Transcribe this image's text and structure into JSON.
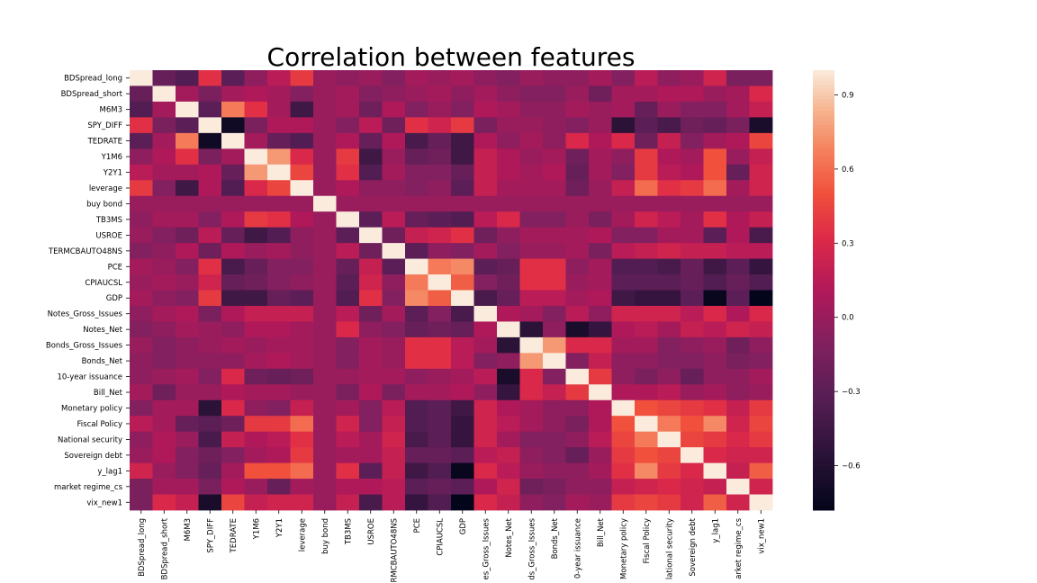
{
  "chart_data": {
    "type": "heatmap",
    "title": "Correlation between features",
    "labels": [
      "BDSpread_long",
      "BDSpread_short",
      "M6M3",
      "SPY_DIFF",
      "TEDRATE",
      "Y1M6",
      "Y2Y1",
      "leverage",
      "buy bond",
      "TB3MS",
      "USROE",
      "TERMCBAUTO48NS",
      "PCE",
      "CPIAUCSL",
      "GDP",
      "Notes_Gross_Issues",
      "Notes_Net",
      "Bonds_Gross_Issues",
      "Bonds_Net",
      "10-year issuance",
      "Bill_Net",
      "Monetary policy",
      "Fiscal Policy",
      "National security",
      "Sovereign debt",
      "y_lag1",
      "market regime_cs",
      "vix_new1"
    ],
    "x_tick_labels": [
      "BDSpread_long",
      "BDSpread_short",
      "M6M3",
      "SPY_DIFF",
      "TEDRATE",
      "Y1M6",
      "Y2Y1",
      "leverage",
      "buy bond",
      "TB3MS",
      "USROE",
      "ERMCBAUTO48NS",
      "PCE",
      "CPIAUCSL",
      "GDP",
      "es_Gross_Issues",
      "Notes_Net",
      "ds_Gross_Issues",
      "Bonds_Net",
      "0-year issuance",
      "Bill_Net",
      "Monetary policy",
      "Fiscal Policy",
      "lational security",
      "Sovereign debt",
      "y_lag1",
      "arket regime_cs",
      "vix_new1"
    ],
    "colorbar": {
      "vmin": -0.78,
      "vmax": 1.0,
      "ticks": [
        0.9,
        0.6,
        0.3,
        0.0,
        -0.3,
        -0.6
      ],
      "tick_labels": [
        "0.9",
        "0.6",
        "0.3",
        "0.0",
        "−0.3",
        "−0.6"
      ]
    },
    "colormap": "rocket",
    "values": [
      [
        1.0,
        -0.25,
        -0.35,
        0.35,
        -0.3,
        -0.05,
        0.15,
        0.4,
        0,
        -0.05,
        0,
        -0.1,
        0.05,
        0,
        0.05,
        -0.05,
        -0.1,
        0,
        -0.05,
        -0.05,
        0.05,
        -0.1,
        0.15,
        -0.05,
        0,
        0.25,
        -0.15,
        -0.15
      ],
      [
        -0.25,
        1.0,
        0.05,
        -0.15,
        0.05,
        0.1,
        0.05,
        -0.1,
        0,
        0.05,
        -0.1,
        -0.05,
        0,
        0.05,
        -0.05,
        0.05,
        -0.05,
        -0.1,
        -0.1,
        0,
        -0.2,
        0.05,
        0.05,
        0.1,
        0.1,
        0,
        0.05,
        0.3
      ],
      [
        -0.35,
        0.05,
        1.0,
        -0.3,
        0.65,
        0.35,
        0.05,
        -0.45,
        0,
        0.05,
        -0.2,
        0.1,
        -0.1,
        0,
        -0.1,
        0.1,
        0.05,
        -0.05,
        -0.05,
        0.05,
        0,
        0.05,
        -0.25,
        0,
        -0.1,
        -0.1,
        0.05,
        0.2
      ],
      [
        0.35,
        -0.15,
        -0.3,
        1.0,
        -0.7,
        -0.15,
        0.1,
        0.1,
        0,
        -0.1,
        0.15,
        -0.2,
        0.35,
        0.25,
        0.4,
        -0.15,
        0,
        0,
        -0.05,
        -0.1,
        0,
        -0.55,
        -0.3,
        -0.4,
        -0.2,
        -0.25,
        -0.15,
        -0.65
      ],
      [
        -0.3,
        0.05,
        0.65,
        -0.7,
        1.0,
        0.05,
        -0.25,
        -0.35,
        0,
        0.1,
        -0.25,
        0.1,
        -0.4,
        -0.25,
        -0.45,
        0.1,
        -0.05,
        0.05,
        -0.05,
        0.3,
        0.1,
        0.3,
        -0.2,
        0.2,
        -0.1,
        0.05,
        0.1,
        0.45
      ],
      [
        -0.05,
        0.1,
        0.35,
        -0.15,
        0.05,
        1.0,
        0.75,
        0.3,
        0,
        0.4,
        -0.45,
        0,
        -0.25,
        -0.2,
        -0.45,
        0.2,
        0.1,
        0,
        0.05,
        -0.2,
        0.05,
        -0.05,
        0.4,
        0.1,
        0.05,
        0.5,
        0,
        0.2
      ],
      [
        0.15,
        0.05,
        0.05,
        0.1,
        -0.25,
        0.75,
        1.0,
        0.45,
        0,
        0.35,
        -0.35,
        0.05,
        -0.1,
        -0.1,
        -0.25,
        0.2,
        0.1,
        0.05,
        0.1,
        -0.25,
        0.05,
        -0.1,
        0.4,
        0.15,
        0.1,
        0.5,
        -0.25,
        0.25
      ],
      [
        0.4,
        -0.1,
        -0.45,
        0.1,
        -0.35,
        0.3,
        0.45,
        1.0,
        0,
        0.1,
        -0.05,
        -0.05,
        -0.1,
        -0.05,
        -0.3,
        0.2,
        0.05,
        0.05,
        0.05,
        -0.2,
        0,
        0.2,
        0.6,
        0.35,
        0.4,
        0.6,
        0.05,
        0.25
      ],
      [
        0,
        0,
        0,
        0,
        0,
        0,
        0,
        0,
        1.0,
        0,
        0,
        0,
        0,
        0,
        0,
        0,
        0,
        0,
        0,
        0,
        0,
        0,
        0,
        0,
        0,
        0,
        0,
        0
      ],
      [
        -0.05,
        0.05,
        0.05,
        -0.1,
        0.1,
        0.4,
        0.35,
        0.1,
        0,
        1.0,
        -0.3,
        0.15,
        -0.25,
        -0.3,
        -0.35,
        0.15,
        0.3,
        -0.1,
        -0.1,
        0,
        -0.15,
        0.05,
        0.25,
        0.15,
        0.05,
        0.35,
        0.1,
        0.2
      ],
      [
        0,
        -0.1,
        -0.2,
        0.15,
        -0.25,
        -0.45,
        -0.35,
        -0.05,
        0,
        -0.3,
        1.0,
        -0.2,
        0.2,
        0.25,
        0.35,
        -0.2,
        -0.05,
        0.05,
        0.05,
        0.05,
        0.1,
        -0.1,
        -0.1,
        0.05,
        0.05,
        -0.3,
        0.1,
        -0.4
      ],
      [
        -0.1,
        -0.05,
        0.1,
        -0.2,
        0.1,
        0,
        0.05,
        -0.05,
        0,
        0.15,
        -0.2,
        1.0,
        -0.3,
        -0.05,
        -0.1,
        0.05,
        -0.1,
        0,
        0,
        0.05,
        -0.15,
        0.15,
        0.2,
        0.25,
        0.2,
        0.2,
        0.15,
        0.15
      ],
      [
        0.05,
        0,
        -0.1,
        0.35,
        -0.4,
        -0.25,
        -0.1,
        -0.1,
        0,
        -0.25,
        0.2,
        -0.3,
        1.0,
        0.65,
        0.7,
        -0.3,
        -0.25,
        0.35,
        0.35,
        -0.05,
        0.05,
        -0.35,
        -0.35,
        -0.4,
        -0.25,
        -0.45,
        -0.3,
        -0.5
      ],
      [
        0,
        0.05,
        0,
        0.25,
        -0.25,
        -0.2,
        -0.1,
        -0.05,
        0,
        -0.3,
        0.25,
        -0.05,
        0.65,
        1.0,
        0.55,
        -0.1,
        -0.2,
        0.35,
        0.35,
        0,
        0.05,
        -0.3,
        -0.3,
        -0.3,
        -0.25,
        -0.35,
        -0.25,
        -0.35
      ],
      [
        0.05,
        -0.05,
        -0.1,
        0.4,
        -0.45,
        -0.45,
        -0.25,
        -0.3,
        0,
        -0.35,
        0.35,
        -0.1,
        0.7,
        0.55,
        1.0,
        -0.4,
        -0.25,
        0.15,
        0.15,
        0.05,
        0.1,
        -0.45,
        -0.5,
        -0.5,
        -0.3,
        -0.75,
        -0.3,
        -0.78
      ],
      [
        -0.05,
        0.05,
        0.1,
        -0.15,
        0.1,
        0.2,
        0.2,
        0.2,
        0,
        0.15,
        -0.2,
        0.05,
        -0.3,
        -0.1,
        -0.4,
        1.0,
        0.1,
        0.05,
        -0.1,
        0.15,
        -0.05,
        0.25,
        0.25,
        0.25,
        0.15,
        0.3,
        0.1,
        0.3
      ],
      [
        -0.1,
        -0.05,
        0.05,
        0,
        -0.05,
        0.1,
        0.1,
        0.05,
        0,
        0.3,
        -0.05,
        -0.1,
        -0.25,
        -0.2,
        -0.25,
        0.1,
        1.0,
        -0.55,
        -0.05,
        -0.65,
        -0.5,
        0.1,
        0.15,
        0.05,
        0.2,
        0.15,
        0.25,
        0.2
      ],
      [
        0,
        -0.1,
        -0.05,
        0,
        0.05,
        0,
        0.05,
        0.05,
        0,
        -0.1,
        0.05,
        0,
        0.35,
        0.35,
        0.15,
        0.05,
        -0.55,
        1.0,
        0.75,
        0.3,
        0.3,
        0.05,
        0.05,
        -0.1,
        -0.05,
        0,
        -0.2,
        -0.05
      ],
      [
        -0.05,
        -0.1,
        -0.05,
        -0.05,
        -0.05,
        0.05,
        0.1,
        0.05,
        0,
        -0.1,
        0.05,
        0,
        0.35,
        0.35,
        0.15,
        -0.1,
        -0.05,
        0.75,
        1.0,
        -0.1,
        0.2,
        -0.05,
        -0.05,
        -0.1,
        -0.1,
        -0.05,
        -0.15,
        -0.1
      ],
      [
        -0.05,
        0,
        0.05,
        -0.1,
        0.3,
        -0.2,
        -0.25,
        -0.2,
        0,
        0,
        0.05,
        0.05,
        -0.05,
        0,
        0.05,
        0.15,
        -0.65,
        0.3,
        -0.1,
        1.0,
        0.4,
        -0.05,
        -0.15,
        -0.05,
        -0.25,
        -0.05,
        -0.05,
        0.05
      ],
      [
        0.05,
        -0.2,
        0,
        0,
        0.1,
        0.05,
        0.05,
        0,
        0,
        -0.15,
        0.1,
        -0.15,
        0.05,
        0.05,
        0.1,
        -0.05,
        -0.5,
        0.3,
        0.2,
        0.4,
        1.0,
        0.1,
        0.1,
        0.15,
        0,
        0.05,
        -0.05,
        0
      ],
      [
        -0.1,
        0.05,
        0.05,
        -0.55,
        0.3,
        -0.05,
        -0.1,
        0.2,
        0,
        0.05,
        -0.1,
        0.15,
        -0.35,
        -0.3,
        -0.45,
        0.25,
        0.1,
        0.05,
        -0.05,
        -0.05,
        0.1,
        1.0,
        0.5,
        0.45,
        0.4,
        0.35,
        0.2,
        0.4
      ],
      [
        0.15,
        0.05,
        -0.25,
        -0.3,
        -0.2,
        0.4,
        0.4,
        0.6,
        0,
        0.25,
        -0.1,
        0.2,
        -0.35,
        -0.3,
        -0.5,
        0.25,
        0.15,
        0.05,
        -0.05,
        -0.15,
        0.1,
        0.5,
        1.0,
        0.65,
        0.5,
        0.7,
        0.25,
        0.45
      ],
      [
        -0.05,
        0.1,
        0,
        -0.4,
        0.2,
        0.1,
        0.15,
        0.35,
        0,
        0.15,
        0.05,
        0.25,
        -0.4,
        -0.3,
        -0.5,
        0.25,
        0.05,
        -0.1,
        -0.1,
        -0.05,
        0.15,
        0.45,
        0.65,
        1.0,
        0.45,
        0.4,
        0.3,
        0.4
      ],
      [
        0,
        0.1,
        -0.1,
        -0.2,
        -0.1,
        0.05,
        0.1,
        0.4,
        0,
        0.05,
        0.05,
        0.2,
        -0.25,
        -0.25,
        -0.3,
        0.15,
        0.2,
        -0.05,
        -0.1,
        -0.25,
        0,
        0.4,
        0.5,
        0.45,
        1.0,
        0.3,
        0.25,
        0.25
      ],
      [
        0.25,
        0,
        -0.1,
        -0.25,
        0.05,
        0.5,
        0.5,
        0.6,
        0,
        0.35,
        -0.3,
        0.2,
        -0.45,
        -0.35,
        -0.75,
        0.3,
        0.15,
        0,
        -0.05,
        -0.05,
        0.05,
        0.35,
        0.7,
        0.4,
        0.3,
        1.0,
        0.2,
        0.55
      ],
      [
        -0.15,
        0.05,
        0.05,
        -0.15,
        0.1,
        0,
        -0.25,
        0.05,
        0,
        0.1,
        0.1,
        0.15,
        -0.3,
        -0.25,
        -0.3,
        0.1,
        0.25,
        -0.2,
        -0.15,
        -0.05,
        -0.05,
        0.2,
        0.25,
        0.3,
        0.25,
        0.2,
        1.0,
        0.25
      ],
      [
        -0.15,
        0.3,
        0.2,
        -0.65,
        0.45,
        0.2,
        0.25,
        0.25,
        0,
        0.2,
        -0.4,
        0.15,
        -0.5,
        -0.35,
        -0.78,
        0.3,
        0.2,
        -0.05,
        -0.1,
        0.05,
        0,
        0.4,
        0.45,
        0.4,
        0.25,
        0.55,
        0.25,
        1.0
      ]
    ]
  }
}
